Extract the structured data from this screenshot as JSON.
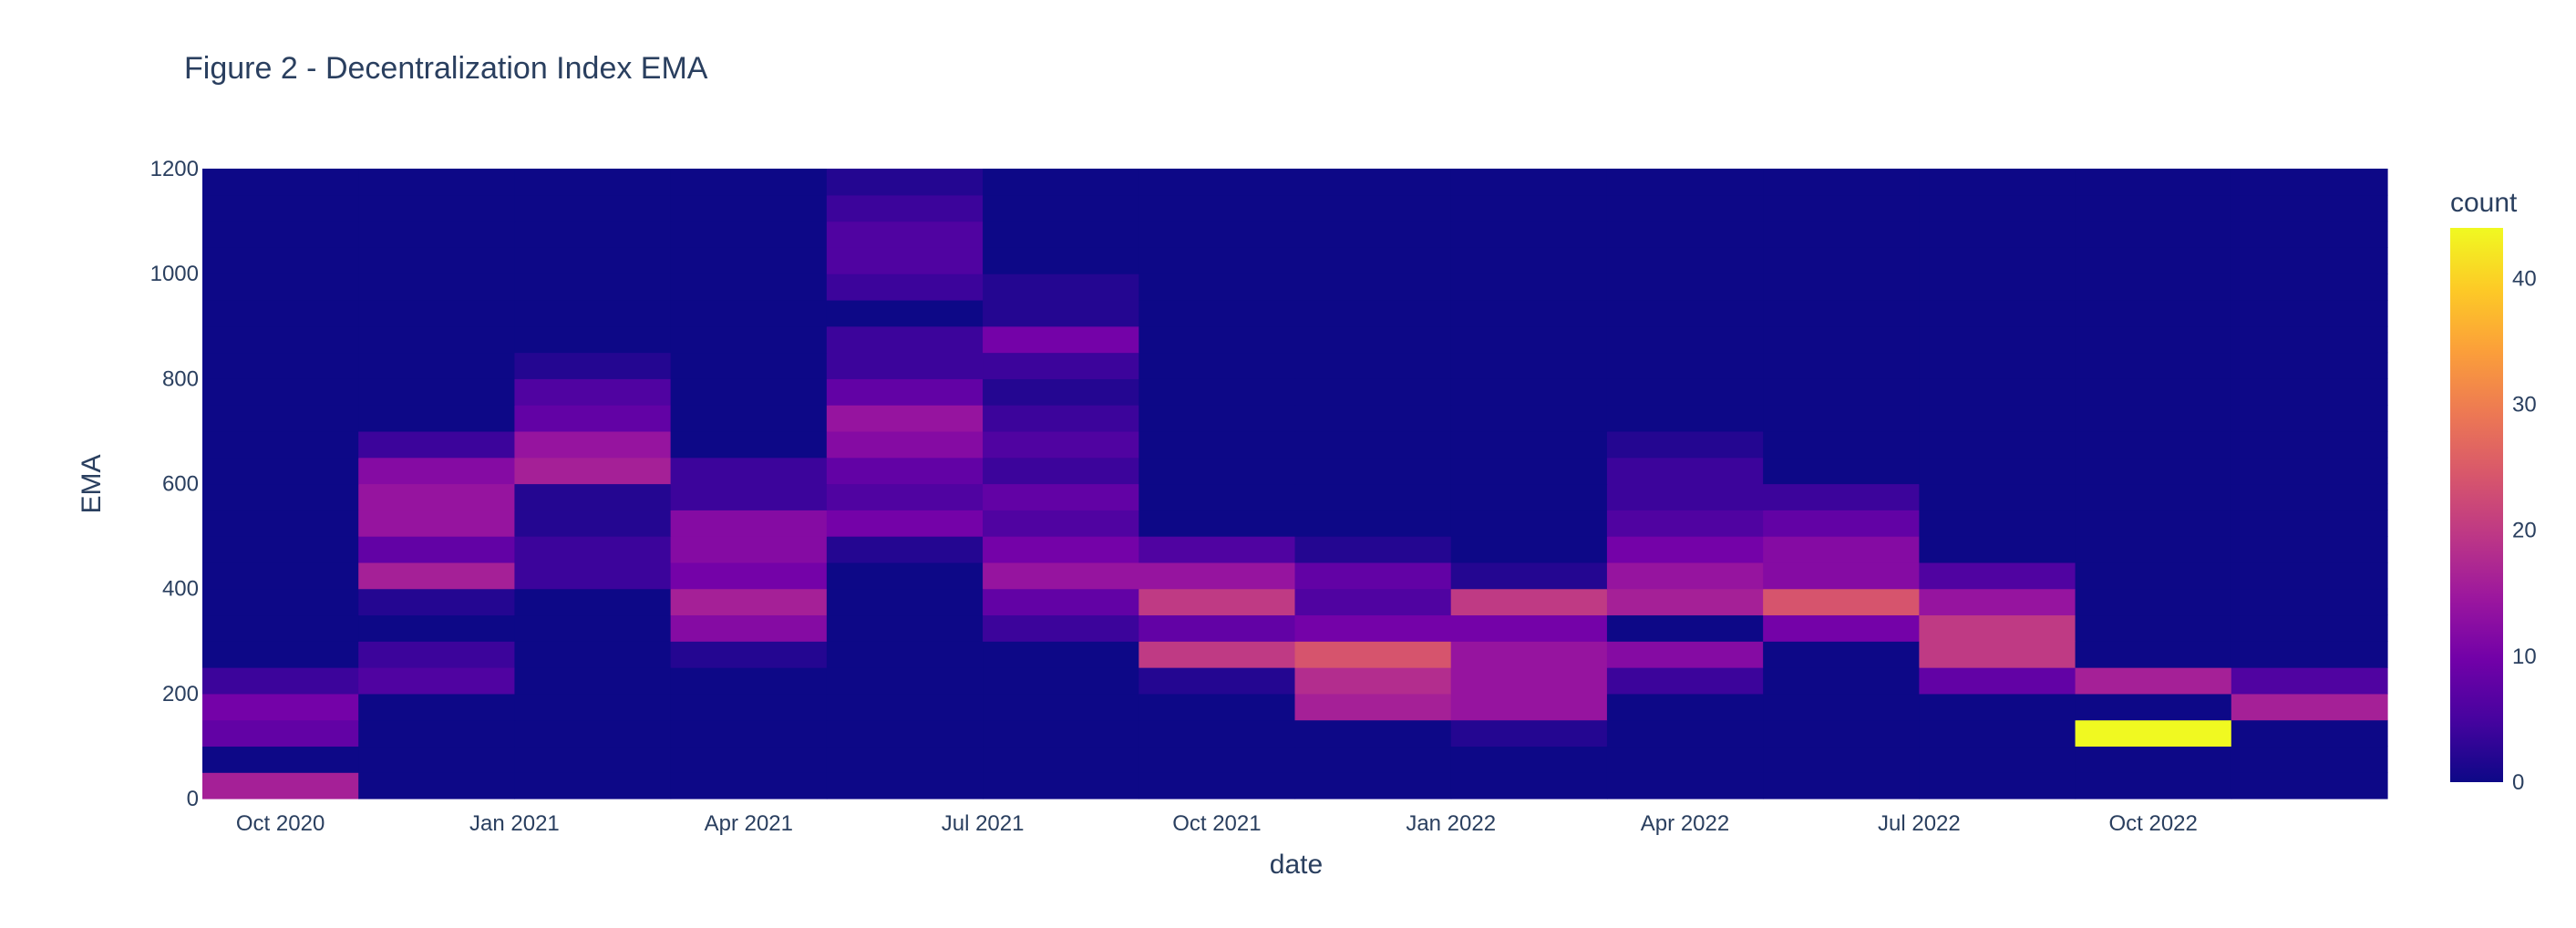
{
  "chart_data": {
    "type": "heatmap",
    "title": "Figure 2 - Decentralization Index EMA",
    "xlabel": "date",
    "ylabel": "EMA",
    "ylim": [
      0,
      1200
    ],
    "y_ticks": [
      0,
      200,
      400,
      600,
      800,
      1000,
      1200
    ],
    "x_ticks": [
      "Oct 2020",
      "Jan 2021",
      "Apr 2021",
      "Jul 2021",
      "Oct 2021",
      "Jan 2022",
      "Apr 2022",
      "Jul 2022",
      "Oct 2022"
    ],
    "x_bins": [
      "Sep 2020",
      "Nov 2020",
      "Jan 2021",
      "Mar 2021",
      "May 2021",
      "Jul 2021",
      "Sep 2021",
      "Nov 2021",
      "Jan 2022",
      "Mar 2022",
      "May 2022",
      "Jul 2022",
      "Sep 2022",
      "Nov 2022"
    ],
    "y_bin_size": 50,
    "colorbar": {
      "title": "count",
      "range": [
        0,
        44
      ],
      "ticks": [
        0,
        10,
        20,
        30,
        40
      ],
      "colors": [
        "#0d0887",
        "#46039f",
        "#7201a8",
        "#9c179e",
        "#bd3786",
        "#d8576b",
        "#ed7953",
        "#fb9f3a",
        "#fdca26",
        "#f0f921"
      ]
    },
    "counts": [
      [
        16,
        0,
        0,
        0,
        0,
        0,
        0,
        0,
        0,
        0,
        0,
        0,
        0,
        0
      ],
      [
        0,
        0,
        0,
        0,
        0,
        0,
        0,
        0,
        0,
        0,
        0,
        0,
        0,
        0
      ],
      [
        8,
        0,
        0,
        0,
        0,
        0,
        0,
        0,
        2,
        0,
        0,
        0,
        44,
        0
      ],
      [
        10,
        0,
        0,
        0,
        0,
        0,
        0,
        16,
        14,
        0,
        0,
        0,
        0,
        16
      ],
      [
        4,
        6,
        0,
        0,
        0,
        0,
        2,
        18,
        14,
        4,
        0,
        8,
        16,
        6
      ],
      [
        0,
        4,
        0,
        2,
        0,
        0,
        20,
        24,
        14,
        12,
        0,
        20,
        0,
        0
      ],
      [
        0,
        0,
        0,
        12,
        0,
        4,
        8,
        10,
        10,
        0,
        10,
        20,
        0,
        0
      ],
      [
        0,
        2,
        0,
        16,
        0,
        8,
        20,
        6,
        20,
        16,
        24,
        14,
        0,
        0
      ],
      [
        0,
        16,
        4,
        10,
        0,
        14,
        14,
        8,
        2,
        14,
        12,
        6,
        0,
        0
      ],
      [
        0,
        8,
        4,
        12,
        2,
        10,
        6,
        2,
        0,
        10,
        12,
        0,
        0,
        0
      ],
      [
        0,
        14,
        2,
        12,
        10,
        6,
        0,
        0,
        0,
        6,
        8,
        0,
        0,
        0
      ],
      [
        0,
        14,
        2,
        4,
        6,
        8,
        0,
        0,
        0,
        4,
        4,
        0,
        0,
        0
      ],
      [
        0,
        12,
        16,
        4,
        8,
        4,
        0,
        0,
        0,
        4,
        0,
        0,
        0,
        0
      ],
      [
        0,
        4,
        14,
        0,
        12,
        6,
        0,
        0,
        0,
        2,
        0,
        0,
        0,
        0
      ],
      [
        0,
        0,
        8,
        0,
        14,
        4,
        0,
        0,
        0,
        0,
        0,
        0,
        0,
        0
      ],
      [
        0,
        0,
        6,
        0,
        8,
        2,
        0,
        0,
        0,
        0,
        0,
        0,
        0,
        0
      ],
      [
        0,
        0,
        2,
        0,
        4,
        4,
        0,
        0,
        0,
        0,
        0,
        0,
        0,
        0
      ],
      [
        0,
        0,
        0,
        0,
        4,
        10,
        0,
        0,
        0,
        0,
        0,
        0,
        0,
        0
      ],
      [
        0,
        0,
        0,
        0,
        0,
        2,
        0,
        0,
        0,
        0,
        0,
        0,
        0,
        0
      ],
      [
        0,
        0,
        0,
        0,
        4,
        2,
        0,
        0,
        0,
        0,
        0,
        0,
        0,
        0
      ],
      [
        0,
        0,
        0,
        0,
        6,
        0,
        0,
        0,
        0,
        0,
        0,
        0,
        0,
        0
      ],
      [
        0,
        0,
        0,
        0,
        6,
        0,
        0,
        0,
        0,
        0,
        0,
        0,
        0,
        0
      ],
      [
        0,
        0,
        0,
        0,
        4,
        0,
        0,
        0,
        0,
        0,
        0,
        0,
        0,
        0
      ],
      [
        0,
        0,
        0,
        0,
        2,
        0,
        0,
        0,
        0,
        0,
        0,
        0,
        0,
        0
      ]
    ]
  }
}
